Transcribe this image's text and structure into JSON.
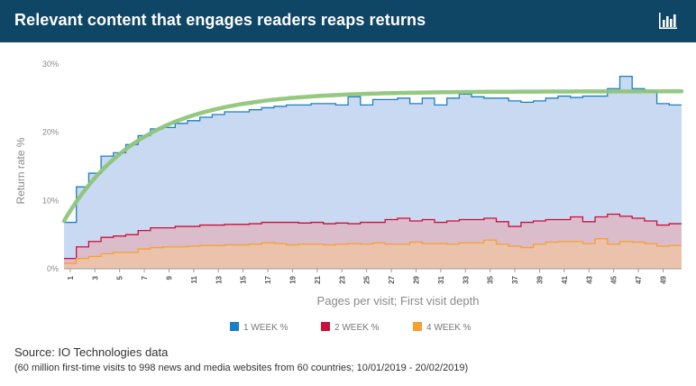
{
  "header": {
    "title": "Relevant content that engages readers reaps returns",
    "icon": "bar-chart-icon"
  },
  "source": "Source: IO Technologies data",
  "note": "(60 million first-time visits to 998 news and media websites from 60 countries; 10/01/2019 - 20/02/2019)",
  "chart_data": {
    "type": "area",
    "title": "",
    "xlabel": "Pages per visit; First visit depth",
    "ylabel": "Return rate %",
    "ylim": [
      0,
      30
    ],
    "xlim": [
      1,
      50
    ],
    "yticks": [
      "0%",
      "10%",
      "20%",
      "30%"
    ],
    "ytick_values": [
      0,
      10,
      20,
      30
    ],
    "xticks": [
      1,
      3,
      5,
      7,
      9,
      11,
      13,
      15,
      17,
      19,
      21,
      23,
      25,
      27,
      29,
      31,
      33,
      35,
      37,
      39,
      41,
      43,
      45,
      47,
      49
    ],
    "grid": false,
    "legend_position": "bottom",
    "x": [
      1,
      2,
      3,
      4,
      5,
      6,
      7,
      8,
      9,
      10,
      11,
      12,
      13,
      14,
      15,
      16,
      17,
      18,
      19,
      20,
      21,
      22,
      23,
      24,
      25,
      26,
      27,
      28,
      29,
      30,
      31,
      32,
      33,
      34,
      35,
      36,
      37,
      38,
      39,
      40,
      41,
      42,
      43,
      44,
      45,
      46,
      47,
      48,
      49,
      50
    ],
    "series": [
      {
        "name": "1 WEEK %",
        "color": "#1b7fc4",
        "fill": "#c9d9f1",
        "values": [
          6.8,
          12.0,
          14.0,
          16.5,
          17.0,
          18.2,
          19.5,
          20.5,
          20.7,
          21.3,
          21.7,
          22.2,
          22.6,
          23.0,
          23.0,
          23.3,
          23.6,
          23.8,
          24.0,
          24.0,
          24.2,
          24.2,
          24.0,
          25.2,
          24.0,
          24.8,
          24.8,
          25.0,
          24.2,
          25.0,
          24.0,
          25.0,
          25.6,
          25.2,
          25.0,
          25.0,
          24.6,
          24.4,
          24.6,
          25.0,
          25.3,
          25.1,
          25.3,
          25.3,
          26.4,
          28.2,
          26.4,
          26.0,
          24.2,
          24.0
        ]
      },
      {
        "name": "2 WEEK %",
        "color": "#c8103e",
        "fill": "#dbbccb",
        "values": [
          1.5,
          3.2,
          4.0,
          4.6,
          4.8,
          5.0,
          5.6,
          6.0,
          6.0,
          6.2,
          6.2,
          6.4,
          6.4,
          6.5,
          6.5,
          6.6,
          6.8,
          6.8,
          6.8,
          6.7,
          6.8,
          6.6,
          6.7,
          6.6,
          6.8,
          6.8,
          7.2,
          7.4,
          7.0,
          7.2,
          6.8,
          7.0,
          7.2,
          7.2,
          7.4,
          6.9,
          6.2,
          6.8,
          7.0,
          7.2,
          7.2,
          7.6,
          6.9,
          7.6,
          8.0,
          7.7,
          7.4,
          7.0,
          6.4,
          6.6
        ]
      },
      {
        "name": "4 WEEK %",
        "color": "#f5a031",
        "fill": "#ebc3ad",
        "values": [
          0.8,
          1.5,
          1.8,
          2.2,
          2.4,
          2.4,
          2.9,
          3.1,
          3.2,
          3.2,
          3.3,
          3.4,
          3.4,
          3.5,
          3.5,
          3.6,
          3.8,
          3.7,
          3.5,
          3.6,
          3.6,
          3.5,
          3.6,
          3.7,
          3.6,
          3.8,
          3.6,
          3.6,
          3.9,
          3.7,
          3.7,
          3.6,
          3.8,
          3.8,
          4.2,
          3.6,
          3.3,
          3.1,
          3.6,
          3.9,
          4.0,
          4.0,
          3.7,
          4.4,
          3.6,
          4.0,
          3.9,
          3.7,
          3.3,
          3.4
        ]
      }
    ],
    "trendline": {
      "color": "#8fc579",
      "note": "logarithmic trend of 1 WEEK %"
    }
  }
}
